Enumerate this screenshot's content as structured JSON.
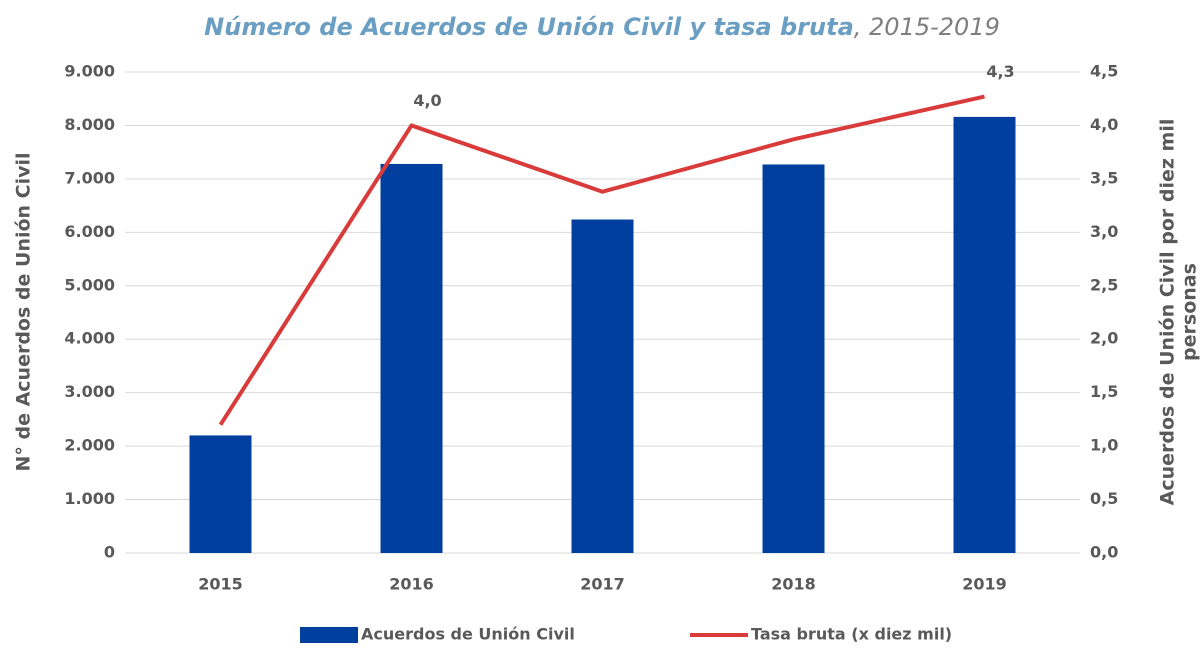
{
  "chart_data": {
    "type": "bar_line",
    "title": [
      "Número de Acuerdos de Unión Civil y tasa bruta",
      ", 2015-2019"
    ],
    "y_label": "N° de Acuerdos de Unión Civil",
    "y2_label": [
      "Acuerdos de Unión Civil por diez mil",
      "personas"
    ],
    "categories": [
      "2015",
      "2016",
      "2017",
      "2018",
      "2019"
    ],
    "series": [
      {
        "name": "Acuerdos de Unión Civil",
        "type": "bar",
        "color": "#003f9e",
        "values": [
          2200,
          7280,
          6240,
          7270,
          8160
        ]
      },
      {
        "name": "Tasa bruta (x diez mil)",
        "type": "line",
        "axis": "y2",
        "color": "#d93a3a",
        "values": [
          1.2,
          4.0,
          3.38,
          3.87,
          4.27
        ],
        "value_labels": [
          null,
          "4,0",
          null,
          null,
          "4,3"
        ]
      }
    ],
    "ylim": [
      0,
      9000
    ],
    "yticks": [
      0,
      {
        "value": 1000,
        "label": "1.000"
      },
      {
        "value": 2000,
        "label": "2.000"
      },
      {
        "value": 3000,
        "label": "3.000"
      },
      {
        "value": 4000,
        "label": "4.000"
      },
      {
        "value": 5000,
        "label": "5.000"
      },
      {
        "value": 6000,
        "label": "6.000"
      },
      {
        "value": 7000,
        "label": "7.000"
      },
      {
        "value": 8000,
        "label": "8.000"
      },
      {
        "value": 9000,
        "label": "9.000"
      }
    ],
    "y2lim": [
      0,
      4.5
    ],
    "y2ticks": [
      {
        "value": 0,
        "label": "0,0"
      },
      {
        "value": 0.5,
        "label": "0,5"
      },
      {
        "value": 1,
        "label": "1,0"
      },
      {
        "value": 1.5,
        "label": "1,5"
      },
      {
        "value": 2,
        "label": "2,0"
      },
      {
        "value": 2.5,
        "label": "2,5"
      },
      {
        "value": 3,
        "label": "3,0"
      },
      {
        "value": 3.5,
        "label": "3,5"
      },
      {
        "value": 4,
        "label": "4,0"
      },
      {
        "value": 4.5,
        "label": "4,5"
      }
    ],
    "grid": true,
    "legend": "bottom"
  }
}
